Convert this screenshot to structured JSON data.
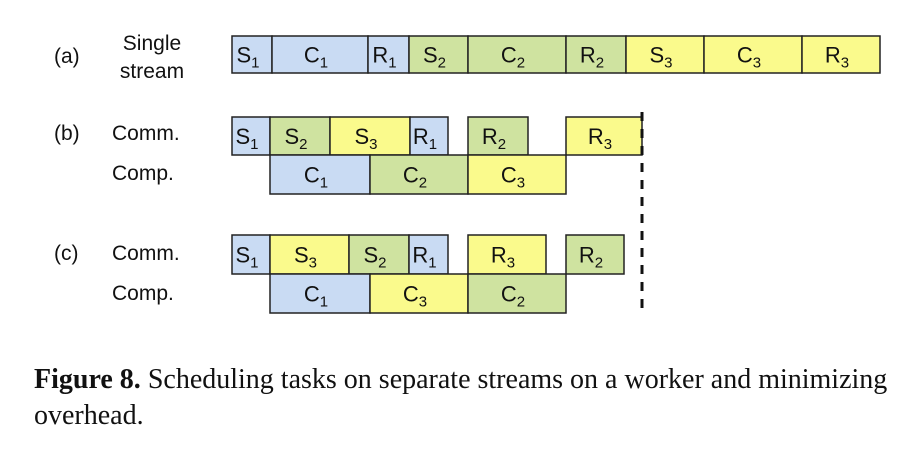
{
  "colors": {
    "send": "#c9dbf3",
    "compute": "#cfe3a0",
    "third": "#fafa8c",
    "stroke": "#222222"
  },
  "rows": [
    {
      "tag": "(a)",
      "lines": [
        "Single",
        "stream"
      ]
    },
    {
      "tag": "(b)",
      "lines": [
        "Comm.",
        "Comp."
      ]
    },
    {
      "tag": "(c)",
      "lines": [
        "Comm.",
        "Comp."
      ]
    }
  ],
  "tasks": {
    "a": [
      {
        "letter": "S",
        "sub": "1",
        "color": "send"
      },
      {
        "letter": "C",
        "sub": "1",
        "color": "send"
      },
      {
        "letter": "R",
        "sub": "1",
        "color": "send"
      },
      {
        "letter": "S",
        "sub": "2",
        "color": "compute"
      },
      {
        "letter": "C",
        "sub": "2",
        "color": "compute"
      },
      {
        "letter": "R",
        "sub": "2",
        "color": "compute"
      },
      {
        "letter": "S",
        "sub": "3",
        "color": "third"
      },
      {
        "letter": "C",
        "sub": "3",
        "color": "third"
      },
      {
        "letter": "R",
        "sub": "3",
        "color": "third"
      }
    ],
    "b_comm": [
      {
        "letter": "S",
        "sub": "1",
        "color": "send"
      },
      {
        "letter": "S",
        "sub": "2",
        "color": "compute"
      },
      {
        "letter": "S",
        "sub": "3",
        "color": "third"
      },
      {
        "letter": "R",
        "sub": "1",
        "color": "send"
      },
      {
        "letter": "R",
        "sub": "2",
        "color": "compute"
      },
      {
        "letter": "R",
        "sub": "3",
        "color": "third"
      }
    ],
    "b_comp": [
      {
        "letter": "C",
        "sub": "1",
        "color": "send"
      },
      {
        "letter": "C",
        "sub": "2",
        "color": "compute"
      },
      {
        "letter": "C",
        "sub": "3",
        "color": "third"
      }
    ],
    "c_comm": [
      {
        "letter": "S",
        "sub": "1",
        "color": "send"
      },
      {
        "letter": "S",
        "sub": "3",
        "color": "third"
      },
      {
        "letter": "S",
        "sub": "2",
        "color": "compute"
      },
      {
        "letter": "R",
        "sub": "1",
        "color": "send"
      },
      {
        "letter": "R",
        "sub": "3",
        "color": "third"
      },
      {
        "letter": "R",
        "sub": "2",
        "color": "compute"
      }
    ],
    "c_comp": [
      {
        "letter": "C",
        "sub": "1",
        "color": "send"
      },
      {
        "letter": "C",
        "sub": "3",
        "color": "third"
      },
      {
        "letter": "C",
        "sub": "2",
        "color": "compute"
      }
    ]
  },
  "caption": {
    "label": "Figure 8.",
    "text": " Scheduling tasks on separate streams on a worker and minimizing overhead."
  }
}
